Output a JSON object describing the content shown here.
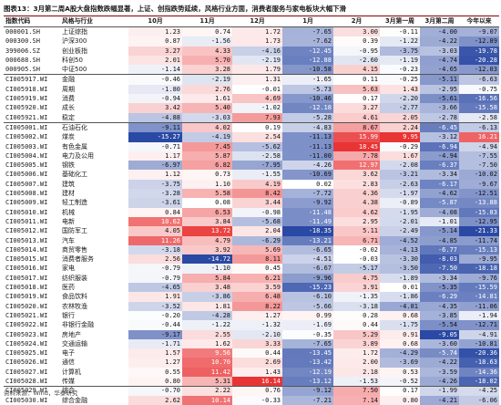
{
  "title": "图表13：3月第二周A股大盘指数跌幅显著，上证、创指跌势延续，风格行业方面，消费者服务与家电板块大幅下滑",
  "headers": [
    "指数代码",
    "风格与行业",
    "10月",
    "11月",
    "12月",
    "1月",
    "2月",
    "3月第一周",
    "3月第二周",
    "今年以来"
  ],
  "rows": [
    {
      "code": "000001.SH",
      "name": "上证综指",
      "v": [
        1.23,
        0.74,
        1.72,
        -7.65,
        3.0,
        -0.11,
        -4.0,
        -9.07
      ],
      "sep": false
    },
    {
      "code": "000300.SH",
      "name": "沪深300",
      "v": [
        0.87,
        -1.56,
        1.73,
        -7.62,
        0.39,
        -1.22,
        -4.22,
        -12.89
      ],
      "sep": false
    },
    {
      "code": "399006.SZ",
      "name": "创业板指",
      "v": [
        3.27,
        4.33,
        -4.16,
        -12.45,
        -0.95,
        -3.75,
        -3.03,
        -19.78
      ],
      "sep": false
    },
    {
      "code": "000688.SH",
      "name": "科创50",
      "v": [
        2.01,
        5.7,
        -2.19,
        -12.88,
        -2.6,
        -1.19,
        -4.74,
        -20.28
      ],
      "sep": false
    },
    {
      "code": "000905.SH",
      "name": "中证500",
      "v": [
        -1.14,
        3.28,
        1.79,
        -10.58,
        4.15,
        -0.23,
        -4.65,
        -12.03
      ],
      "sep": false
    },
    {
      "code": "CI005917.WI",
      "name": "金融",
      "v": [
        -0.46,
        -2.19,
        1.31,
        -1.65,
        0.11,
        -0.25,
        -5.11,
        -6.63
      ],
      "sep": true
    },
    {
      "code": "CI005918.WI",
      "name": "周期",
      "v": [
        -1.8,
        2.76,
        -0.01,
        -5.73,
        5.63,
        1.43,
        -2.95,
        -0.75
      ],
      "sep": false
    },
    {
      "code": "CI005919.WI",
      "name": "消费",
      "v": [
        -0.94,
        1.61,
        4.69,
        -10.46,
        0.17,
        -2.2,
        -5.61,
        -16.56
      ],
      "sep": false
    },
    {
      "code": "CI005920.WI",
      "name": "成长",
      "v": [
        3.42,
        5.4,
        -1.02,
        -12.18,
        3.27,
        -2.77,
        -3.66,
        -15.58
      ],
      "sep": false
    },
    {
      "code": "CI005921.WI",
      "name": "稳定",
      "v": [
        -4.88,
        -3.03,
        7.93,
        -5.28,
        4.61,
        2.05,
        -2.78,
        -2.58
      ],
      "sep": false
    },
    {
      "code": "CI005001.WI",
      "name": "石油石化",
      "v": [
        -9.11,
        4.02,
        0.19,
        -4.83,
        8.67,
        2.24,
        -6.45,
        -6.13
      ],
      "sep": true
    },
    {
      "code": "CI005002.WI",
      "name": "煤炭",
      "v": [
        -15.27,
        -4.19,
        2.54,
        -11.13,
        15.99,
        9.95,
        -3.12,
        16.21
      ],
      "sep": false
    },
    {
      "code": "CI005003.WI",
      "name": "有色金属",
      "v": [
        -0.71,
        7.45,
        -5.62,
        -11.13,
        18.45,
        -0.29,
        -6.94,
        -4.94
      ],
      "sep": false
    },
    {
      "code": "CI005004.WI",
      "name": "电力及公用",
      "v": [
        1.17,
        5.87,
        -2.58,
        -11.0,
        7.78,
        1.67,
        -4.94,
        -7.55
      ],
      "sep": false
    },
    {
      "code": "CI005005.WI",
      "name": "钢铁",
      "v": [
        -6.97,
        6.82,
        -7.95,
        -4.26,
        12.97,
        -2.08,
        -6.37,
        -7.5
      ],
      "sep": false
    },
    {
      "code": "CI005006.WI",
      "name": "基础化工",
      "v": [
        1.12,
        0.73,
        -1.55,
        -10.69,
        3.62,
        -3.21,
        -3.34,
        -10.02
      ],
      "sep": false
    },
    {
      "code": "CI005007.WI",
      "name": "建筑",
      "v": [
        -3.75,
        1.1,
        4.19,
        0.02,
        2.83,
        -2.63,
        -6.17,
        -9.67
      ],
      "sep": false
    },
    {
      "code": "CI005008.WI",
      "name": "建材",
      "v": [
        -3.28,
        5.58,
        8.42,
        -7.72,
        4.36,
        -1.97,
        -4.62,
        -12.51
      ],
      "sep": false
    },
    {
      "code": "CI005009.WI",
      "name": "轻工制造",
      "v": [
        -3.61,
        0.08,
        3.44,
        -9.92,
        4.38,
        -0.89,
        -5.87,
        -13.88
      ],
      "sep": false
    },
    {
      "code": "CI005010.WI",
      "name": "机械",
      "v": [
        0.84,
        6.53,
        -0.98,
        -11.48,
        4.62,
        -1.95,
        -4.08,
        -15.83
      ],
      "sep": false
    },
    {
      "code": "CI005011.WI",
      "name": "电新",
      "v": [
        10.62,
        3.84,
        -5.68,
        -11.49,
        2.95,
        -2.01,
        -1.01,
        -12.95
      ],
      "sep": false
    },
    {
      "code": "CI005012.WI",
      "name": "国防军工",
      "v": [
        4.05,
        13.72,
        2.04,
        -18.35,
        5.11,
        -2.49,
        -5.14,
        -21.33
      ],
      "sep": false
    },
    {
      "code": "CI005013.WI",
      "name": "汽车",
      "v": [
        11.26,
        4.79,
        -6.29,
        -13.21,
        6.71,
        -4.52,
        -4.85,
        -11.74
      ],
      "sep": false
    },
    {
      "code": "CI005014.WI",
      "name": "商贸零售",
      "v": [
        -3.18,
        3.92,
        5.69,
        -6.65,
        -0.02,
        -4.13,
        -6.77,
        -15.13
      ],
      "sep": false
    },
    {
      "code": "CI005015.WI",
      "name": "消费者服务",
      "v": [
        2.56,
        -14.72,
        8.11,
        -4.51,
        -0.03,
        -3.3,
        -8.03,
        -9.95
      ],
      "sep": false
    },
    {
      "code": "CI005016.WI",
      "name": "家电",
      "v": [
        -0.79,
        -1.1,
        0.45,
        -6.67,
        -5.17,
        -3.5,
        -7.5,
        -18.18
      ],
      "sep": false
    },
    {
      "code": "CI005017.WI",
      "name": "纺织服装",
      "v": [
        -0.79,
        5.84,
        6.21,
        -9.96,
        4.75,
        -1.89,
        -3.34,
        -9.76
      ],
      "sep": false
    },
    {
      "code": "CI005018.WI",
      "name": "医药",
      "v": [
        -4.65,
        3.48,
        3.59,
        -15.23,
        3.91,
        0.01,
        -5.35,
        -15.59
      ],
      "sep": false
    },
    {
      "code": "CI005019.WI",
      "name": "食品饮料",
      "v": [
        1.91,
        -3.86,
        6.48,
        -6.1,
        -1.35,
        -1.86,
        -6.29,
        -14.81
      ],
      "sep": false
    },
    {
      "code": "CI005020.WI",
      "name": "农林牧渔",
      "v": [
        -3.52,
        1.81,
        8.22,
        -5.66,
        -3.18,
        -4.81,
        -4.35,
        -11.06
      ],
      "sep": false
    },
    {
      "code": "CI005021.WI",
      "name": "银行",
      "v": [
        -0.2,
        -4.28,
        1.27,
        0.99,
        0.28,
        0.68,
        -3.85,
        -1.94
      ],
      "sep": false
    },
    {
      "code": "CI005022.WI",
      "name": "非银行金融",
      "v": [
        -0.44,
        -1.22,
        -1.32,
        -1.69,
        0.44,
        -1.75,
        -5.54,
        -12.71
      ],
      "sep": false
    },
    {
      "code": "CI005023.WI",
      "name": "房地产",
      "v": [
        -9.17,
        2.55,
        -2.1,
        -0.35,
        5.29,
        0.91,
        -9.05,
        -4.91
      ],
      "sep": false
    },
    {
      "code": "CI005024.WI",
      "name": "交通运输",
      "v": [
        -1.71,
        1.62,
        3.33,
        -7.65,
        3.89,
        0.68,
        -3.6,
        -10.81
      ],
      "sep": false
    },
    {
      "code": "CI005025.WI",
      "name": "电子",
      "v": [
        1.57,
        9.56,
        0.44,
        -13.45,
        1.72,
        -4.29,
        -5.74,
        -20.36
      ],
      "sep": false
    },
    {
      "code": "CI005026.WI",
      "name": "通信",
      "v": [
        1.27,
        10.7,
        2.69,
        -13.42,
        2.0,
        -3.69,
        -4.22,
        -18.63
      ],
      "sep": false
    },
    {
      "code": "CI005027.WI",
      "name": "计算机",
      "v": [
        0.55,
        11.42,
        1.43,
        -12.19,
        2.18,
        0.53,
        -3.59,
        -14.36
      ],
      "sep": false
    },
    {
      "code": "CI005028.WI",
      "name": "传媒",
      "v": [
        0.8,
        5.31,
        16.14,
        -13.12,
        -1.53,
        -0.52,
        -4.26,
        -18.02
      ],
      "sep": false
    },
    {
      "code": "CI005029.WI",
      "name": "综合",
      "v": [
        -0.7,
        2.22,
        0.76,
        -9.12,
        7.5,
        0.17,
        -1.99,
        -4.25
      ],
      "sep": false
    },
    {
      "code": "CI005030.WI",
      "name": "综合金融",
      "v": [
        2.62,
        10.14,
        -0.33,
        -7.21,
        7.14,
        0.8,
        -4.21,
        -6.06
      ],
      "sep": false
    }
  ],
  "colors": {
    "pos_max": "#e8292a",
    "neg_max": "#1f3f9f",
    "neutral": "#ffffff"
  },
  "footer": "资料来源：Wind，华泰研究"
}
